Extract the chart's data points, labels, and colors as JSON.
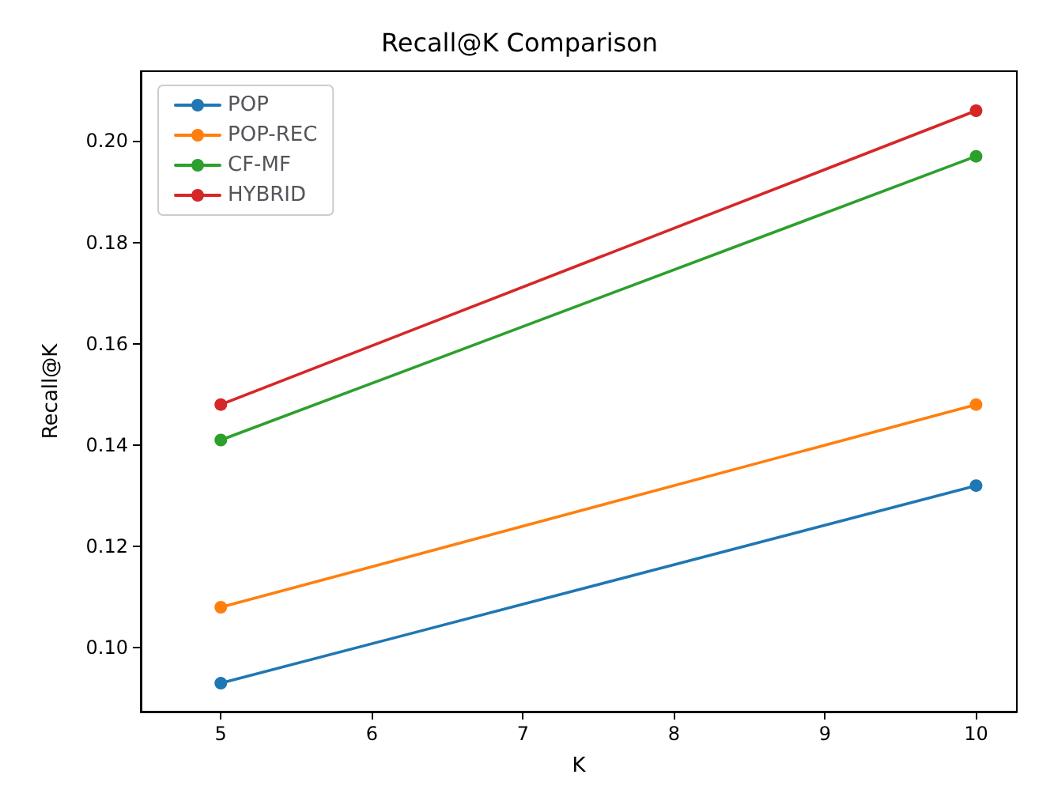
{
  "chart_data": {
    "type": "line",
    "title": "Recall@K Comparison",
    "xlabel": "K",
    "ylabel": "Recall@K",
    "x": [
      5,
      10
    ],
    "series": [
      {
        "name": "POP",
        "color": "#1f77b4",
        "values": [
          0.093,
          0.132
        ]
      },
      {
        "name": "POP-REC",
        "color": "#ff7f0e",
        "values": [
          0.108,
          0.148
        ]
      },
      {
        "name": "CF-MF",
        "color": "#2ca02c",
        "values": [
          0.141,
          0.197
        ]
      },
      {
        "name": "HYBRID",
        "color": "#d62728",
        "values": [
          0.148,
          0.206
        ]
      }
    ],
    "xlim": [
      4.47,
      10.27
    ],
    "xticks": [
      5,
      6,
      7,
      8,
      9,
      10
    ],
    "ylim": [
      0.0874,
      0.2138
    ],
    "yticks": [
      {
        "value": 0.1,
        "label": "0.10"
      },
      {
        "value": 0.12,
        "label": "0.12"
      },
      {
        "value": 0.14,
        "label": "0.14"
      },
      {
        "value": 0.16,
        "label": "0.16"
      },
      {
        "value": 0.18,
        "label": "0.18"
      },
      {
        "value": 0.2,
        "label": "0.20"
      }
    ],
    "legend": "top left",
    "marker": "circle",
    "line_style": "solid",
    "grid": false
  }
}
